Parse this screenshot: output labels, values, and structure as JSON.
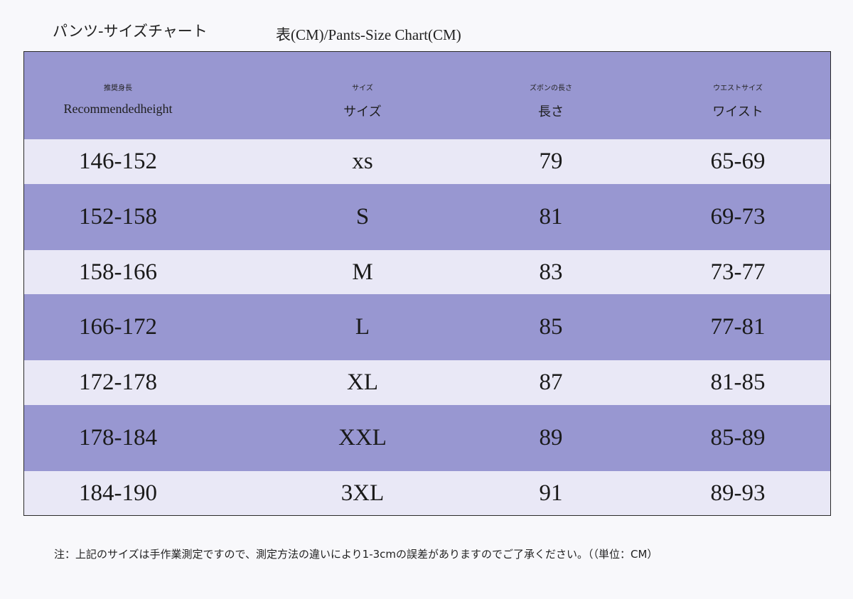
{
  "title": {
    "jp": "パンツ-サイズチャート",
    "en": "表(CM)/Pants-Size Chart(CM)"
  },
  "table": {
    "headers": [
      {
        "small": "推奨身長",
        "big": "Recommendedheight"
      },
      {
        "small": "サイズ",
        "big": "サイズ"
      },
      {
        "small": "ズボンの長さ",
        "big": "長さ"
      },
      {
        "small": "ウエストサイズ",
        "big": "ワイスト"
      }
    ],
    "rows": [
      {
        "height": "146-152",
        "size": "xs",
        "length": "79",
        "waist": "65-69"
      },
      {
        "height": "152-158",
        "size": "S",
        "length": "81",
        "waist": "69-73"
      },
      {
        "height": "158-166",
        "size": "M",
        "length": "83",
        "waist": "73-77"
      },
      {
        "height": "166-172",
        "size": "L",
        "length": "85",
        "waist": "77-81"
      },
      {
        "height": "172-178",
        "size": "XL",
        "length": "87",
        "waist": "81-85"
      },
      {
        "height": "178-184",
        "size": "XXL",
        "length": "89",
        "waist": "85-89"
      },
      {
        "height": "184-190",
        "size": "3XL",
        "length": "91",
        "waist": "89-93"
      }
    ]
  },
  "note": "注：上記のサイズは手作業測定ですので、測定方法の違いにより1-3cmの誤差がありますのでご了承ください。（（単位：CM）",
  "colors": {
    "band": "#9897d1",
    "light_row": "#e9e8f6",
    "background": "#f8f8fb"
  }
}
